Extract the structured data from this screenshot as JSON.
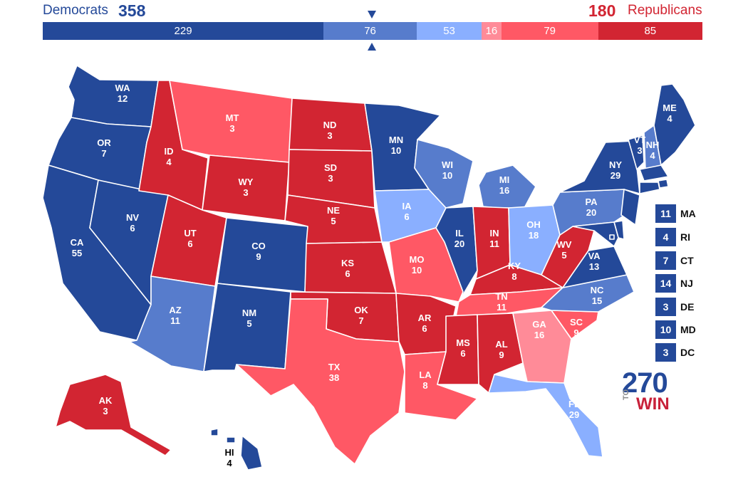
{
  "header": {
    "dem_label": "Democrats",
    "dem_total": "358",
    "rep_total": "180",
    "rep_label": "Republicans"
  },
  "colors": {
    "safe_d": "#244999",
    "likely_d": "#577ccc",
    "leans_d": "#8aafff",
    "tilt_r": "#ff8b98",
    "leans_r": "#ff5865",
    "safe_r": "#d22532",
    "border": "#ffffff"
  },
  "bar": [
    {
      "value": "229",
      "color": "#244999",
      "count": 229
    },
    {
      "value": "76",
      "color": "#577ccc",
      "count": 76
    },
    {
      "value": "53",
      "color": "#8aafff",
      "count": 53
    },
    {
      "value": "16",
      "color": "#ff8b98",
      "count": 16
    },
    {
      "value": "79",
      "color": "#ff5865",
      "count": 79
    },
    {
      "value": "85",
      "color": "#d22532",
      "count": 85
    }
  ],
  "states": {
    "WA": {
      "abbr": "WA",
      "ev": "12",
      "color": "#244999"
    },
    "OR": {
      "abbr": "OR",
      "ev": "7",
      "color": "#244999"
    },
    "CA": {
      "abbr": "CA",
      "ev": "55",
      "color": "#244999"
    },
    "NV": {
      "abbr": "NV",
      "ev": "6",
      "color": "#244999"
    },
    "ID": {
      "abbr": "ID",
      "ev": "4",
      "color": "#d22532"
    },
    "MT": {
      "abbr": "MT",
      "ev": "3",
      "color": "#ff5865"
    },
    "WY": {
      "abbr": "WY",
      "ev": "3",
      "color": "#d22532"
    },
    "UT": {
      "abbr": "UT",
      "ev": "6",
      "color": "#d22532"
    },
    "AZ": {
      "abbr": "AZ",
      "ev": "11",
      "color": "#577ccc"
    },
    "CO": {
      "abbr": "CO",
      "ev": "9",
      "color": "#244999"
    },
    "NM": {
      "abbr": "NM",
      "ev": "5",
      "color": "#244999"
    },
    "ND": {
      "abbr": "ND",
      "ev": "3",
      "color": "#d22532"
    },
    "SD": {
      "abbr": "SD",
      "ev": "3",
      "color": "#d22532"
    },
    "NE": {
      "abbr": "NE",
      "ev": "5",
      "color": "#d22532"
    },
    "KS": {
      "abbr": "KS",
      "ev": "6",
      "color": "#d22532"
    },
    "OK": {
      "abbr": "OK",
      "ev": "7",
      "color": "#d22532"
    },
    "TX": {
      "abbr": "TX",
      "ev": "38",
      "color": "#ff5865"
    },
    "MN": {
      "abbr": "MN",
      "ev": "10",
      "color": "#244999"
    },
    "IA": {
      "abbr": "IA",
      "ev": "6",
      "color": "#8aafff"
    },
    "MO": {
      "abbr": "MO",
      "ev": "10",
      "color": "#ff5865"
    },
    "AR": {
      "abbr": "AR",
      "ev": "6",
      "color": "#d22532"
    },
    "LA": {
      "abbr": "LA",
      "ev": "8",
      "color": "#ff5865"
    },
    "WI": {
      "abbr": "WI",
      "ev": "10",
      "color": "#577ccc"
    },
    "IL": {
      "abbr": "IL",
      "ev": "20",
      "color": "#244999"
    },
    "MI": {
      "abbr": "MI",
      "ev": "16",
      "color": "#577ccc"
    },
    "IN": {
      "abbr": "IN",
      "ev": "11",
      "color": "#d22532"
    },
    "OH": {
      "abbr": "OH",
      "ev": "18",
      "color": "#8aafff"
    },
    "KY": {
      "abbr": "KY",
      "ev": "8",
      "color": "#d22532"
    },
    "TN": {
      "abbr": "TN",
      "ev": "11",
      "color": "#ff5865"
    },
    "MS": {
      "abbr": "MS",
      "ev": "6",
      "color": "#d22532"
    },
    "AL": {
      "abbr": "AL",
      "ev": "9",
      "color": "#d22532"
    },
    "GA": {
      "abbr": "GA",
      "ev": "16",
      "color": "#ff8b98"
    },
    "FL": {
      "abbr": "FL",
      "ev": "29",
      "color": "#8aafff"
    },
    "SC": {
      "abbr": "SC",
      "ev": "9",
      "color": "#ff5865"
    },
    "NC": {
      "abbr": "NC",
      "ev": "15",
      "color": "#577ccc"
    },
    "VA": {
      "abbr": "VA",
      "ev": "13",
      "color": "#244999"
    },
    "WV": {
      "abbr": "WV",
      "ev": "5",
      "color": "#d22532"
    },
    "PA": {
      "abbr": "PA",
      "ev": "20",
      "color": "#577ccc"
    },
    "NY": {
      "abbr": "NY",
      "ev": "29",
      "color": "#244999"
    },
    "VT": {
      "abbr": "VT",
      "ev": "3",
      "color": "#244999"
    },
    "NH": {
      "abbr": "NH",
      "ev": "4",
      "color": "#577ccc"
    },
    "ME": {
      "abbr": "ME",
      "ev": "4",
      "color": "#244999"
    },
    "AK": {
      "abbr": "AK",
      "ev": "3",
      "color": "#d22532"
    },
    "HI": {
      "abbr": "HI",
      "ev": "4",
      "color": "#244999"
    },
    "MA": {
      "abbr": "MA",
      "ev": "11",
      "color": "#244999"
    },
    "RI": {
      "abbr": "RI",
      "ev": "4",
      "color": "#244999"
    },
    "CT": {
      "abbr": "CT",
      "ev": "7",
      "color": "#244999"
    },
    "NJ": {
      "abbr": "NJ",
      "ev": "14",
      "color": "#244999"
    },
    "DE": {
      "abbr": "DE",
      "ev": "3",
      "color": "#244999"
    },
    "MD": {
      "abbr": "MD",
      "ev": "10",
      "color": "#244999"
    },
    "DC": {
      "abbr": "DC",
      "ev": "3",
      "color": "#244999"
    }
  },
  "legend": [
    {
      "ev": "11",
      "name": "MA"
    },
    {
      "ev": "4",
      "name": "RI"
    },
    {
      "ev": "7",
      "name": "CT"
    },
    {
      "ev": "14",
      "name": "NJ"
    },
    {
      "ev": "3",
      "name": "DE"
    },
    {
      "ev": "10",
      "name": "MD"
    },
    {
      "ev": "3",
      "name": "DC"
    }
  ],
  "logo": {
    "num": "270",
    "to": "TO",
    "win": "WIN"
  }
}
